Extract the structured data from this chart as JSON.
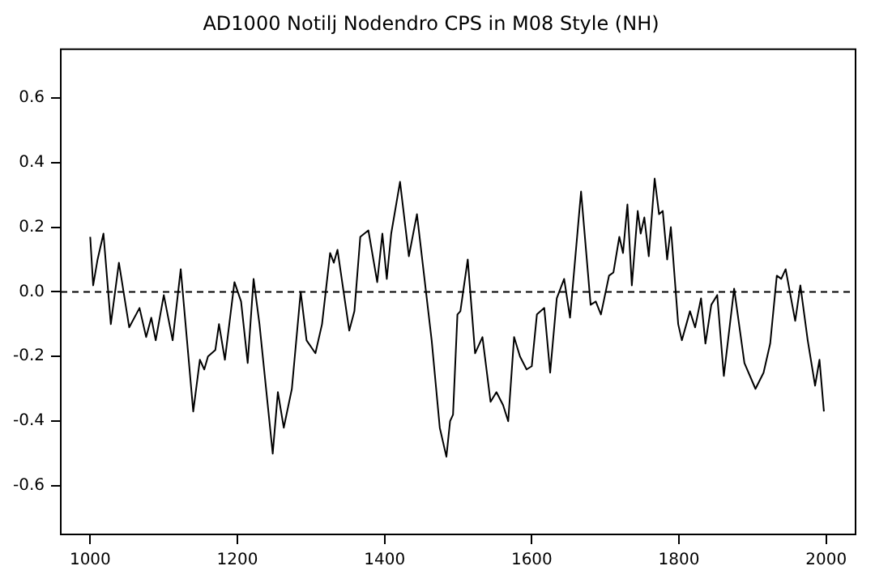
{
  "chart_data": {
    "type": "line",
    "title": "AD1000 Notilj Nodendro CPS in M08 Style (NH)",
    "x": [
      1000,
      1004,
      1010,
      1018,
      1028,
      1039,
      1053,
      1067,
      1076,
      1083,
      1089,
      1100,
      1112,
      1123,
      1140,
      1149,
      1155,
      1160,
      1170,
      1175,
      1183,
      1196,
      1205,
      1214,
      1222,
      1230,
      1248,
      1255,
      1263,
      1274,
      1286,
      1294,
      1306,
      1315,
      1326,
      1331,
      1336,
      1352,
      1359,
      1367,
      1378,
      1390,
      1397,
      1403,
      1409,
      1421,
      1433,
      1444,
      1464,
      1475,
      1484,
      1489,
      1493,
      1499,
      1503,
      1513,
      1523,
      1533,
      1544,
      1552,
      1561,
      1568,
      1576,
      1584,
      1593,
      1600,
      1607,
      1617,
      1625,
      1634,
      1644,
      1652,
      1667,
      1680,
      1687,
      1694,
      1705,
      1711,
      1719,
      1724,
      1730,
      1736,
      1744,
      1748,
      1753,
      1759,
      1767,
      1773,
      1778,
      1784,
      1789,
      1799,
      1804,
      1815,
      1822,
      1830,
      1836,
      1844,
      1852,
      1861,
      1875,
      1889,
      1904,
      1915,
      1924,
      1933,
      1939,
      1945,
      1958,
      1965,
      1975,
      1985,
      1991,
      1997
    ],
    "series": [
      {
        "color": "#000000",
        "values": [
          0.17,
          0.02,
          0.1,
          0.18,
          -0.1,
          0.09,
          -0.11,
          -0.05,
          -0.14,
          -0.08,
          -0.15,
          -0.01,
          -0.15,
          0.07,
          -0.37,
          -0.21,
          -0.24,
          -0.2,
          -0.18,
          -0.1,
          -0.21,
          0.03,
          -0.03,
          -0.22,
          0.04,
          -0.1,
          -0.5,
          -0.31,
          -0.42,
          -0.3,
          0.0,
          -0.15,
          -0.19,
          -0.1,
          0.12,
          0.09,
          0.13,
          -0.12,
          -0.06,
          0.17,
          0.19,
          0.03,
          0.18,
          0.04,
          0.18,
          0.34,
          0.11,
          0.24,
          -0.15,
          -0.42,
          -0.51,
          -0.4,
          -0.38,
          -0.07,
          -0.06,
          0.1,
          -0.19,
          -0.14,
          -0.34,
          -0.31,
          -0.35,
          -0.4,
          -0.14,
          -0.2,
          -0.24,
          -0.23,
          -0.07,
          -0.05,
          -0.25,
          -0.02,
          0.04,
          -0.08,
          0.31,
          -0.04,
          -0.03,
          -0.07,
          0.05,
          0.06,
          0.17,
          0.12,
          0.27,
          0.02,
          0.25,
          0.18,
          0.23,
          0.11,
          0.35,
          0.24,
          0.25,
          0.1,
          0.2,
          -0.1,
          -0.15,
          -0.06,
          -0.11,
          -0.02,
          -0.16,
          -0.04,
          -0.01,
          -0.26,
          0.01,
          -0.22,
          -0.3,
          -0.25,
          -0.16,
          0.05,
          0.04,
          0.07,
          -0.09,
          0.02,
          -0.15,
          -0.29,
          -0.21,
          -0.37
        ]
      }
    ],
    "xlim": [
      960,
      2040
    ],
    "xticks": [
      1000,
      1200,
      1400,
      1600,
      1800,
      2000
    ],
    "ylim": [
      -0.75,
      0.75
    ],
    "yticks": [
      -0.6,
      -0.4,
      -0.2,
      {
        "value": 0,
        "label": "0.0"
      },
      0.2,
      0.4,
      0.6
    ],
    "ref_lines": [
      {
        "axis": "y",
        "value": 0,
        "color": "#000000",
        "line_style": "dashed"
      }
    ],
    "grid": false,
    "legend": false,
    "marker": "none",
    "line_style": "solid"
  }
}
